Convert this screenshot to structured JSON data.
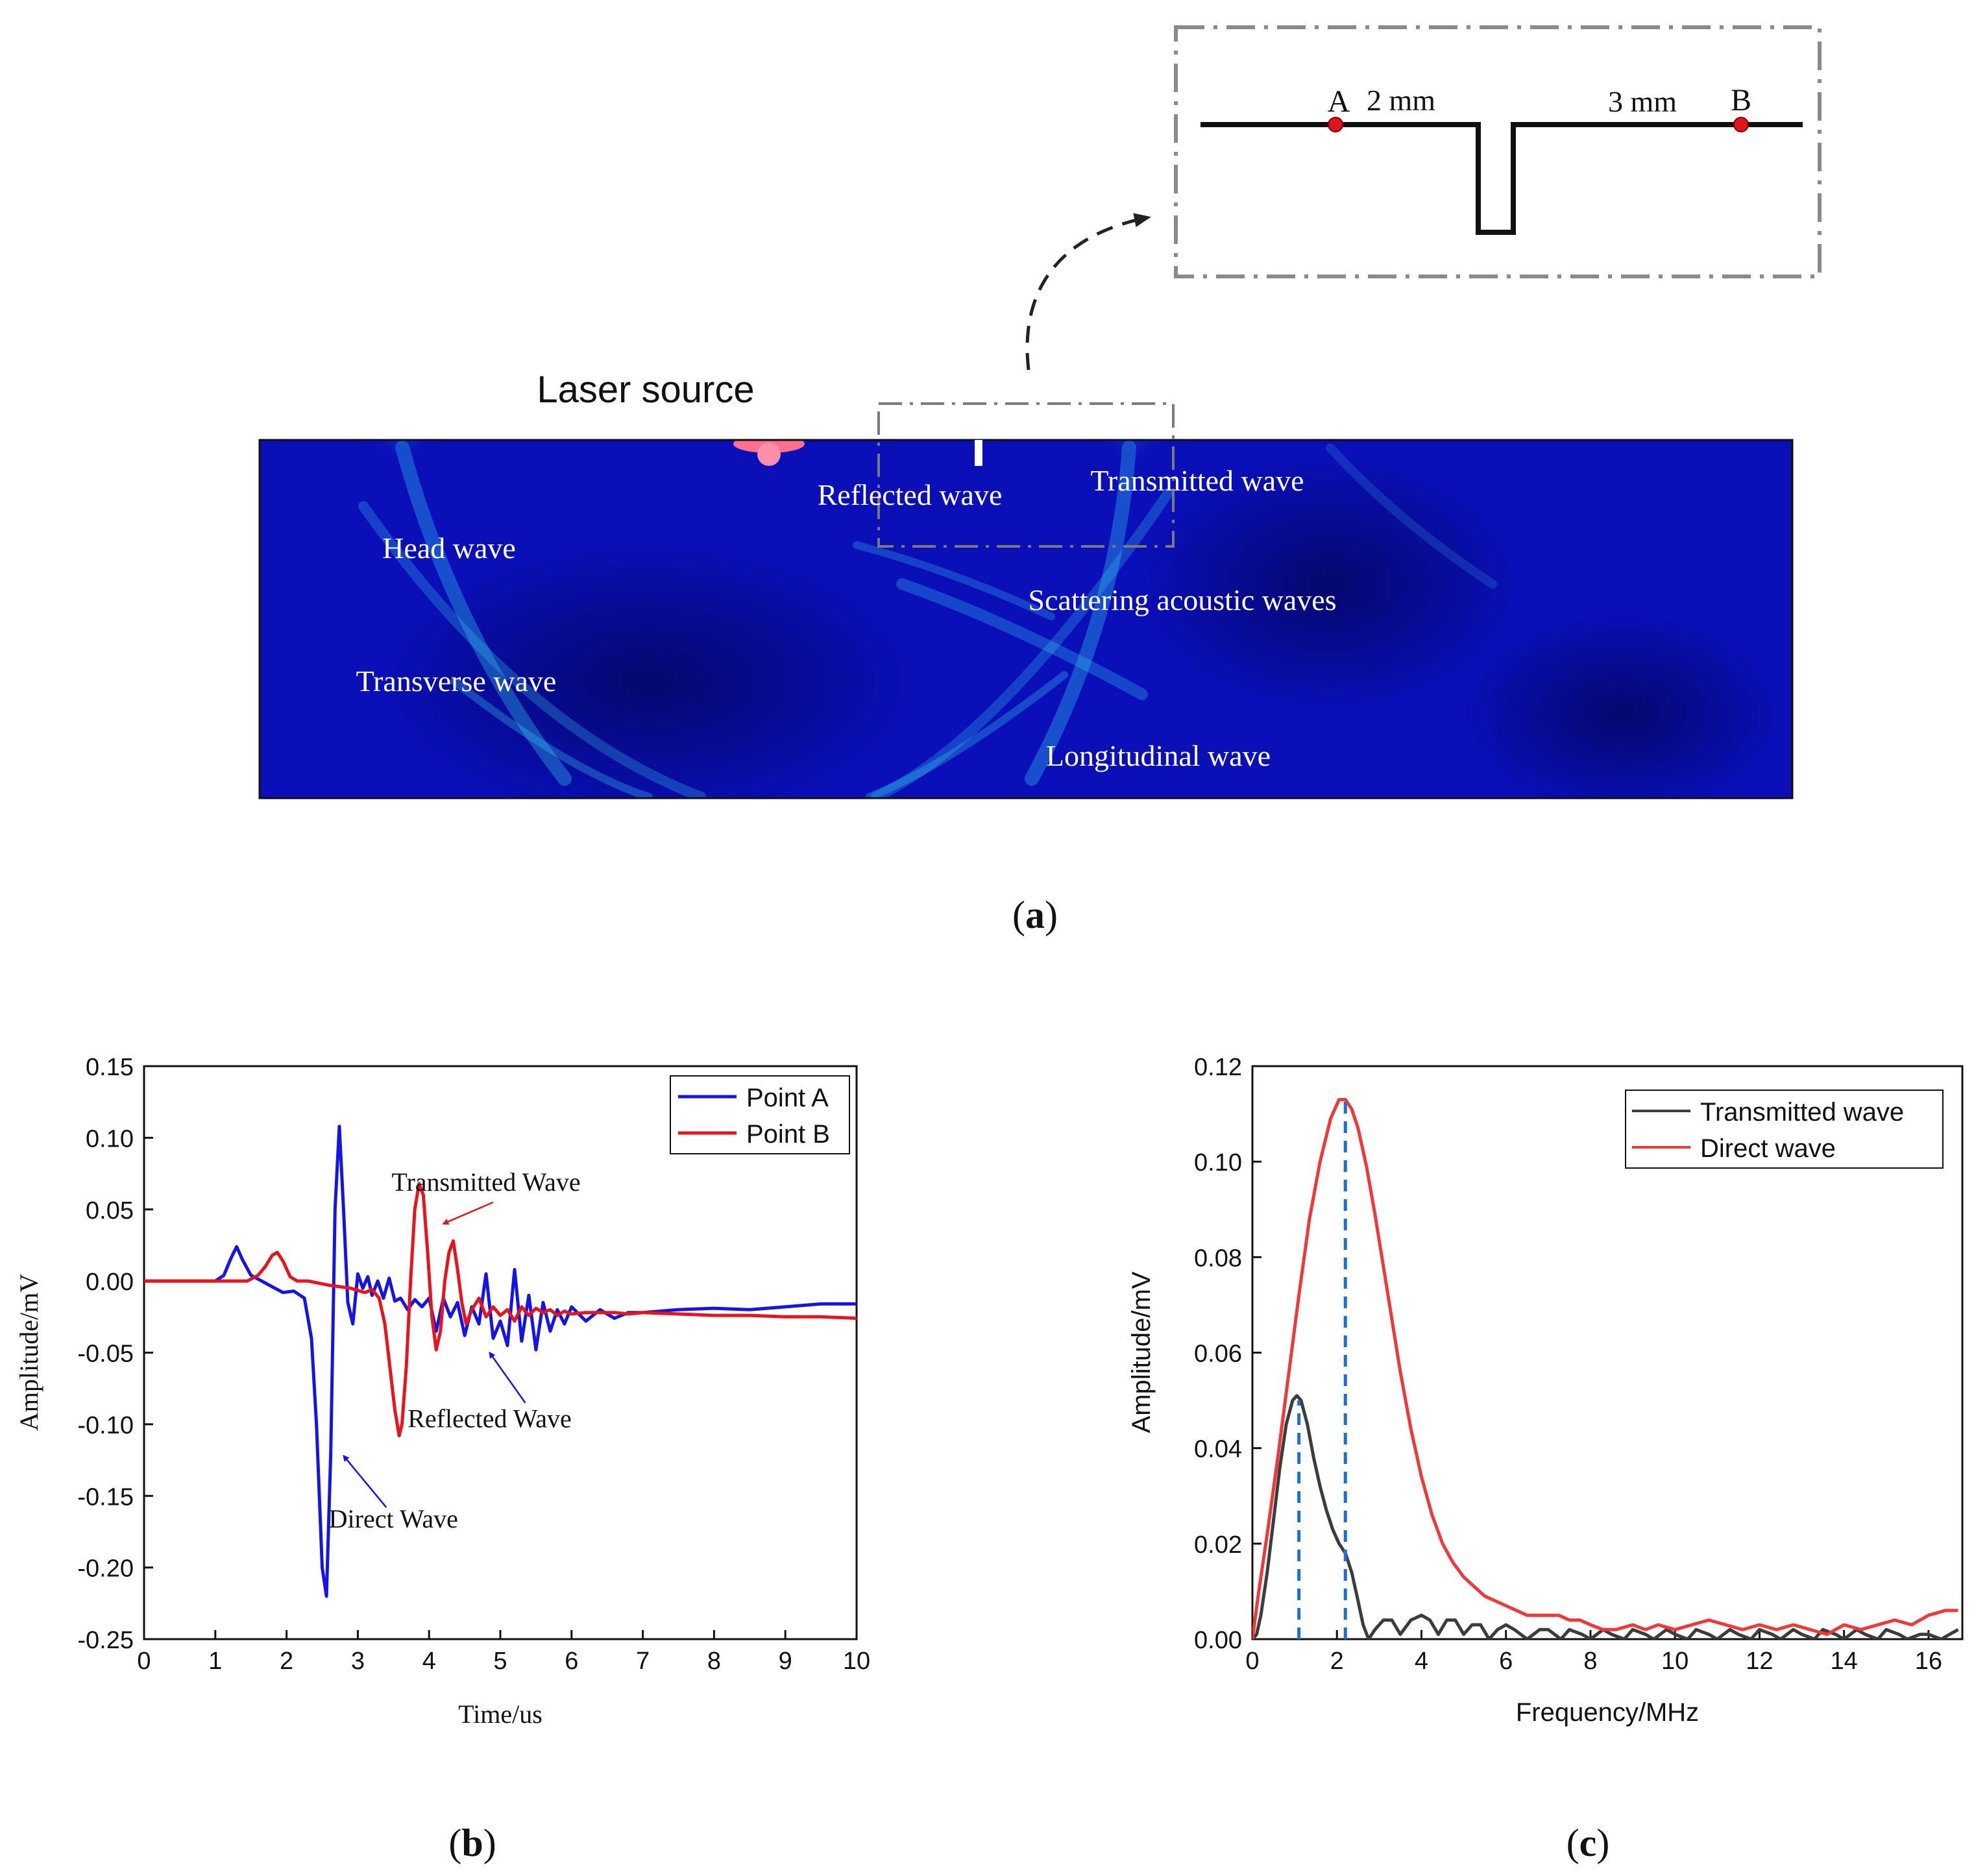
{
  "panel_a": {
    "caption": "(a)",
    "caption_letter": "a",
    "laser_label": "Laser source",
    "wave_labels": {
      "reflected": "Reflected wave",
      "transmitted": "Transmitted wave",
      "head": "Head wave",
      "scattering": "Scattering acoustic waves",
      "transverse": "Transverse wave",
      "longitudinal": "Longitudinal wave"
    },
    "inset": {
      "point_a": "A",
      "point_b": "B",
      "dist_a": "2 mm",
      "dist_b": "3 mm",
      "point_color": "#e0151b"
    },
    "colors": {
      "field": "#0a0fb8",
      "field_dark": "#05087a",
      "wavefront": "#35c8f2",
      "source": "#ff6f8f"
    }
  },
  "chart_data": [
    {
      "panel": "b",
      "caption": "(b)",
      "caption_letter": "b",
      "type": "line",
      "xlabel": "Time/us",
      "ylabel": "Amplitude/mV",
      "xlim": [
        0,
        10
      ],
      "ylim": [
        -0.25,
        0.15
      ],
      "xticks": [
        0,
        1,
        2,
        3,
        4,
        5,
        6,
        7,
        8,
        9,
        10
      ],
      "yticks": [
        -0.25,
        -0.2,
        -0.15,
        -0.1,
        -0.05,
        0.0,
        0.05,
        0.1,
        0.15
      ],
      "ytick_labels": [
        "-0.25",
        "-0.20",
        "-0.15",
        "-0.10",
        "-0.05",
        "0.00",
        "0.05",
        "0.10",
        "0.15"
      ],
      "legend_position": "top-right",
      "grid": false,
      "series": [
        {
          "name": "Point A",
          "color": "#1414e6",
          "x": [
            0,
            1.0,
            1.12,
            1.22,
            1.3,
            1.38,
            1.5,
            1.65,
            1.8,
            1.95,
            2.1,
            2.25,
            2.35,
            2.42,
            2.5,
            2.56,
            2.62,
            2.68,
            2.74,
            2.8,
            2.86,
            2.93,
            3.0,
            3.07,
            3.14,
            3.2,
            3.28,
            3.36,
            3.44,
            3.52,
            3.6,
            3.7,
            3.8,
            3.9,
            4.0,
            4.1,
            4.2,
            4.3,
            4.4,
            4.5,
            4.6,
            4.7,
            4.8,
            4.9,
            5.0,
            5.1,
            5.2,
            5.3,
            5.4,
            5.5,
            5.6,
            5.7,
            5.8,
            5.9,
            6.0,
            6.2,
            6.4,
            6.6,
            6.8,
            7.0,
            7.5,
            8.0,
            8.5,
            9.0,
            9.5,
            10.0
          ],
          "values": [
            0.0,
            0.0,
            0.004,
            0.016,
            0.024,
            0.015,
            0.004,
            0.0,
            -0.004,
            -0.008,
            -0.007,
            -0.012,
            -0.04,
            -0.1,
            -0.2,
            -0.22,
            -0.12,
            0.05,
            0.108,
            0.05,
            -0.015,
            -0.03,
            0.005,
            -0.005,
            0.003,
            -0.01,
            0.0,
            -0.012,
            0.002,
            -0.014,
            -0.012,
            -0.02,
            -0.013,
            -0.018,
            -0.012,
            -0.035,
            -0.012,
            -0.025,
            -0.015,
            -0.038,
            -0.018,
            -0.03,
            0.005,
            -0.04,
            -0.028,
            -0.045,
            0.008,
            -0.042,
            -0.01,
            -0.048,
            -0.015,
            -0.035,
            -0.02,
            -0.03,
            -0.018,
            -0.028,
            -0.02,
            -0.026,
            -0.022,
            -0.022,
            -0.02,
            -0.019,
            -0.02,
            -0.018,
            -0.016,
            -0.016
          ]
        },
        {
          "name": "Point B",
          "color": "#e8141c",
          "x": [
            0,
            1.45,
            1.6,
            1.7,
            1.8,
            1.87,
            1.95,
            2.05,
            2.15,
            2.3,
            2.6,
            2.9,
            3.1,
            3.2,
            3.3,
            3.38,
            3.45,
            3.52,
            3.58,
            3.62,
            3.68,
            3.74,
            3.8,
            3.86,
            3.92,
            3.98,
            4.04,
            4.1,
            4.16,
            4.22,
            4.28,
            4.34,
            4.4,
            4.46,
            4.52,
            4.6,
            4.7,
            4.8,
            4.9,
            5.0,
            5.1,
            5.2,
            5.3,
            5.4,
            5.5,
            5.6,
            5.7,
            5.8,
            5.9,
            6.0,
            6.2,
            6.4,
            6.6,
            6.8,
            7.0,
            7.5,
            8.0,
            8.5,
            9.0,
            9.5,
            10.0
          ],
          "values": [
            0.0,
            0.0,
            0.004,
            0.01,
            0.018,
            0.02,
            0.014,
            0.003,
            0.0,
            0.0,
            -0.003,
            -0.005,
            -0.008,
            -0.006,
            -0.012,
            -0.03,
            -0.06,
            -0.09,
            -0.108,
            -0.1,
            -0.06,
            0.0,
            0.05,
            0.068,
            0.06,
            0.02,
            -0.025,
            -0.048,
            -0.035,
            0.0,
            0.02,
            0.028,
            0.008,
            -0.015,
            -0.03,
            -0.02,
            -0.012,
            -0.025,
            -0.018,
            -0.024,
            -0.02,
            -0.028,
            -0.018,
            -0.024,
            -0.019,
            -0.022,
            -0.02,
            -0.024,
            -0.021,
            -0.023,
            -0.022,
            -0.022,
            -0.022,
            -0.023,
            -0.022,
            -0.023,
            -0.024,
            -0.024,
            -0.025,
            -0.025,
            -0.026
          ]
        }
      ],
      "annotations": [
        {
          "text": "Transmitted Wave",
          "x": 4.8,
          "y": 0.063,
          "color": "#e8141c",
          "arrow_from": [
            4.9,
            0.055
          ],
          "arrow_to": [
            4.2,
            0.04
          ]
        },
        {
          "text": "Reflected Wave",
          "x": 4.85,
          "y": -0.102,
          "color": "#1414e6",
          "arrow_from": [
            5.35,
            -0.085
          ],
          "arrow_to": [
            4.85,
            -0.05
          ]
        },
        {
          "text": "Direct Wave",
          "x": 3.5,
          "y": -0.172,
          "color": "#1414e6",
          "arrow_from": [
            3.4,
            -0.158
          ],
          "arrow_to": [
            2.8,
            -0.122
          ]
        }
      ]
    },
    {
      "panel": "c",
      "caption": "(c)",
      "caption_letter": "c",
      "type": "line",
      "xlabel": "Frequency/MHz",
      "ylabel": "Amplitude/mV",
      "xlim": [
        0,
        16.8
      ],
      "ylim": [
        0,
        0.12
      ],
      "xticks": [
        0,
        2,
        4,
        6,
        8,
        10,
        12,
        14,
        16
      ],
      "yticks": [
        0.0,
        0.02,
        0.04,
        0.06,
        0.08,
        0.1,
        0.12
      ],
      "ytick_labels": [
        "0.00",
        "0.02",
        "0.04",
        "0.06",
        "0.08",
        "0.10",
        "0.12"
      ],
      "legend_position": "top-right",
      "grid": false,
      "series": [
        {
          "name": "Transmitted wave",
          "color": "#3c3c3c",
          "x": [
            0,
            0.1,
            0.2,
            0.35,
            0.5,
            0.65,
            0.8,
            0.95,
            1.05,
            1.15,
            1.3,
            1.45,
            1.6,
            1.75,
            1.9,
            2.05,
            2.2,
            2.35,
            2.5,
            2.62,
            2.75,
            2.9,
            3.1,
            3.3,
            3.5,
            3.75,
            4.0,
            4.2,
            4.4,
            4.6,
            4.8,
            5.0,
            5.2,
            5.4,
            5.6,
            5.8,
            6.0,
            6.2,
            6.5,
            6.8,
            7.0,
            7.3,
            7.5,
            7.8,
            8.0,
            8.3,
            8.5,
            8.8,
            9.0,
            9.3,
            9.5,
            9.8,
            10.0,
            10.3,
            10.5,
            10.8,
            11.0,
            11.3,
            11.5,
            11.8,
            12.0,
            12.3,
            12.5,
            12.8,
            13.0,
            13.3,
            13.5,
            13.8,
            14.0,
            14.3,
            14.5,
            14.8,
            15.0,
            15.3,
            15.5,
            15.8,
            16.0,
            16.3,
            16.5,
            16.7
          ],
          "values": [
            0.0,
            0.001,
            0.005,
            0.014,
            0.025,
            0.036,
            0.045,
            0.05,
            0.051,
            0.05,
            0.045,
            0.038,
            0.032,
            0.027,
            0.023,
            0.02,
            0.018,
            0.014,
            0.008,
            0.003,
            0.0,
            0.002,
            0.004,
            0.004,
            0.001,
            0.004,
            0.005,
            0.004,
            0.001,
            0.004,
            0.004,
            0.001,
            0.003,
            0.003,
            0.0,
            0.002,
            0.003,
            0.002,
            0.0,
            0.002,
            0.002,
            0.0,
            0.002,
            0.001,
            0.0,
            0.002,
            0.001,
            0.0,
            0.002,
            0.001,
            0.0,
            0.002,
            0.001,
            0.0,
            0.002,
            0.001,
            0.0,
            0.002,
            0.001,
            0.0,
            0.002,
            0.001,
            0.0,
            0.002,
            0.001,
            0.0,
            0.002,
            0.001,
            0.0,
            0.002,
            0.001,
            0.0,
            0.002,
            0.001,
            0.0,
            0.001,
            0.001,
            0.0,
            0.001,
            0.002
          ]
        },
        {
          "name": "Direct wave",
          "color": "#f03838",
          "x": [
            0,
            0.15,
            0.35,
            0.6,
            0.85,
            1.1,
            1.35,
            1.6,
            1.85,
            2.05,
            2.2,
            2.35,
            2.5,
            2.7,
            2.9,
            3.1,
            3.3,
            3.5,
            3.75,
            4.0,
            4.25,
            4.5,
            4.75,
            5.0,
            5.25,
            5.5,
            5.75,
            6.0,
            6.25,
            6.5,
            6.75,
            7.0,
            7.25,
            7.5,
            7.75,
            8.0,
            8.3,
            8.6,
            9.0,
            9.3,
            9.6,
            10.0,
            10.4,
            10.8,
            11.2,
            11.6,
            12.0,
            12.4,
            12.8,
            13.2,
            13.6,
            14.0,
            14.4,
            14.8,
            15.2,
            15.6,
            16.0,
            16.4,
            16.7
          ],
          "values": [
            0.0,
            0.01,
            0.022,
            0.038,
            0.055,
            0.072,
            0.088,
            0.1,
            0.109,
            0.113,
            0.113,
            0.111,
            0.107,
            0.099,
            0.089,
            0.078,
            0.067,
            0.056,
            0.044,
            0.034,
            0.026,
            0.02,
            0.016,
            0.013,
            0.011,
            0.009,
            0.008,
            0.007,
            0.006,
            0.005,
            0.005,
            0.005,
            0.005,
            0.004,
            0.004,
            0.003,
            0.002,
            0.002,
            0.003,
            0.002,
            0.003,
            0.002,
            0.003,
            0.004,
            0.003,
            0.002,
            0.003,
            0.002,
            0.003,
            0.002,
            0.001,
            0.003,
            0.002,
            0.003,
            0.004,
            0.003,
            0.005,
            0.006,
            0.006
          ]
        }
      ],
      "reference_lines": [
        {
          "x": 1.1,
          "y_top": 0.05,
          "color": "#1f6fd1",
          "style": "dashed"
        },
        {
          "x": 2.2,
          "y_top": 0.113,
          "color": "#1f6fd1",
          "style": "dashed"
        }
      ]
    }
  ]
}
